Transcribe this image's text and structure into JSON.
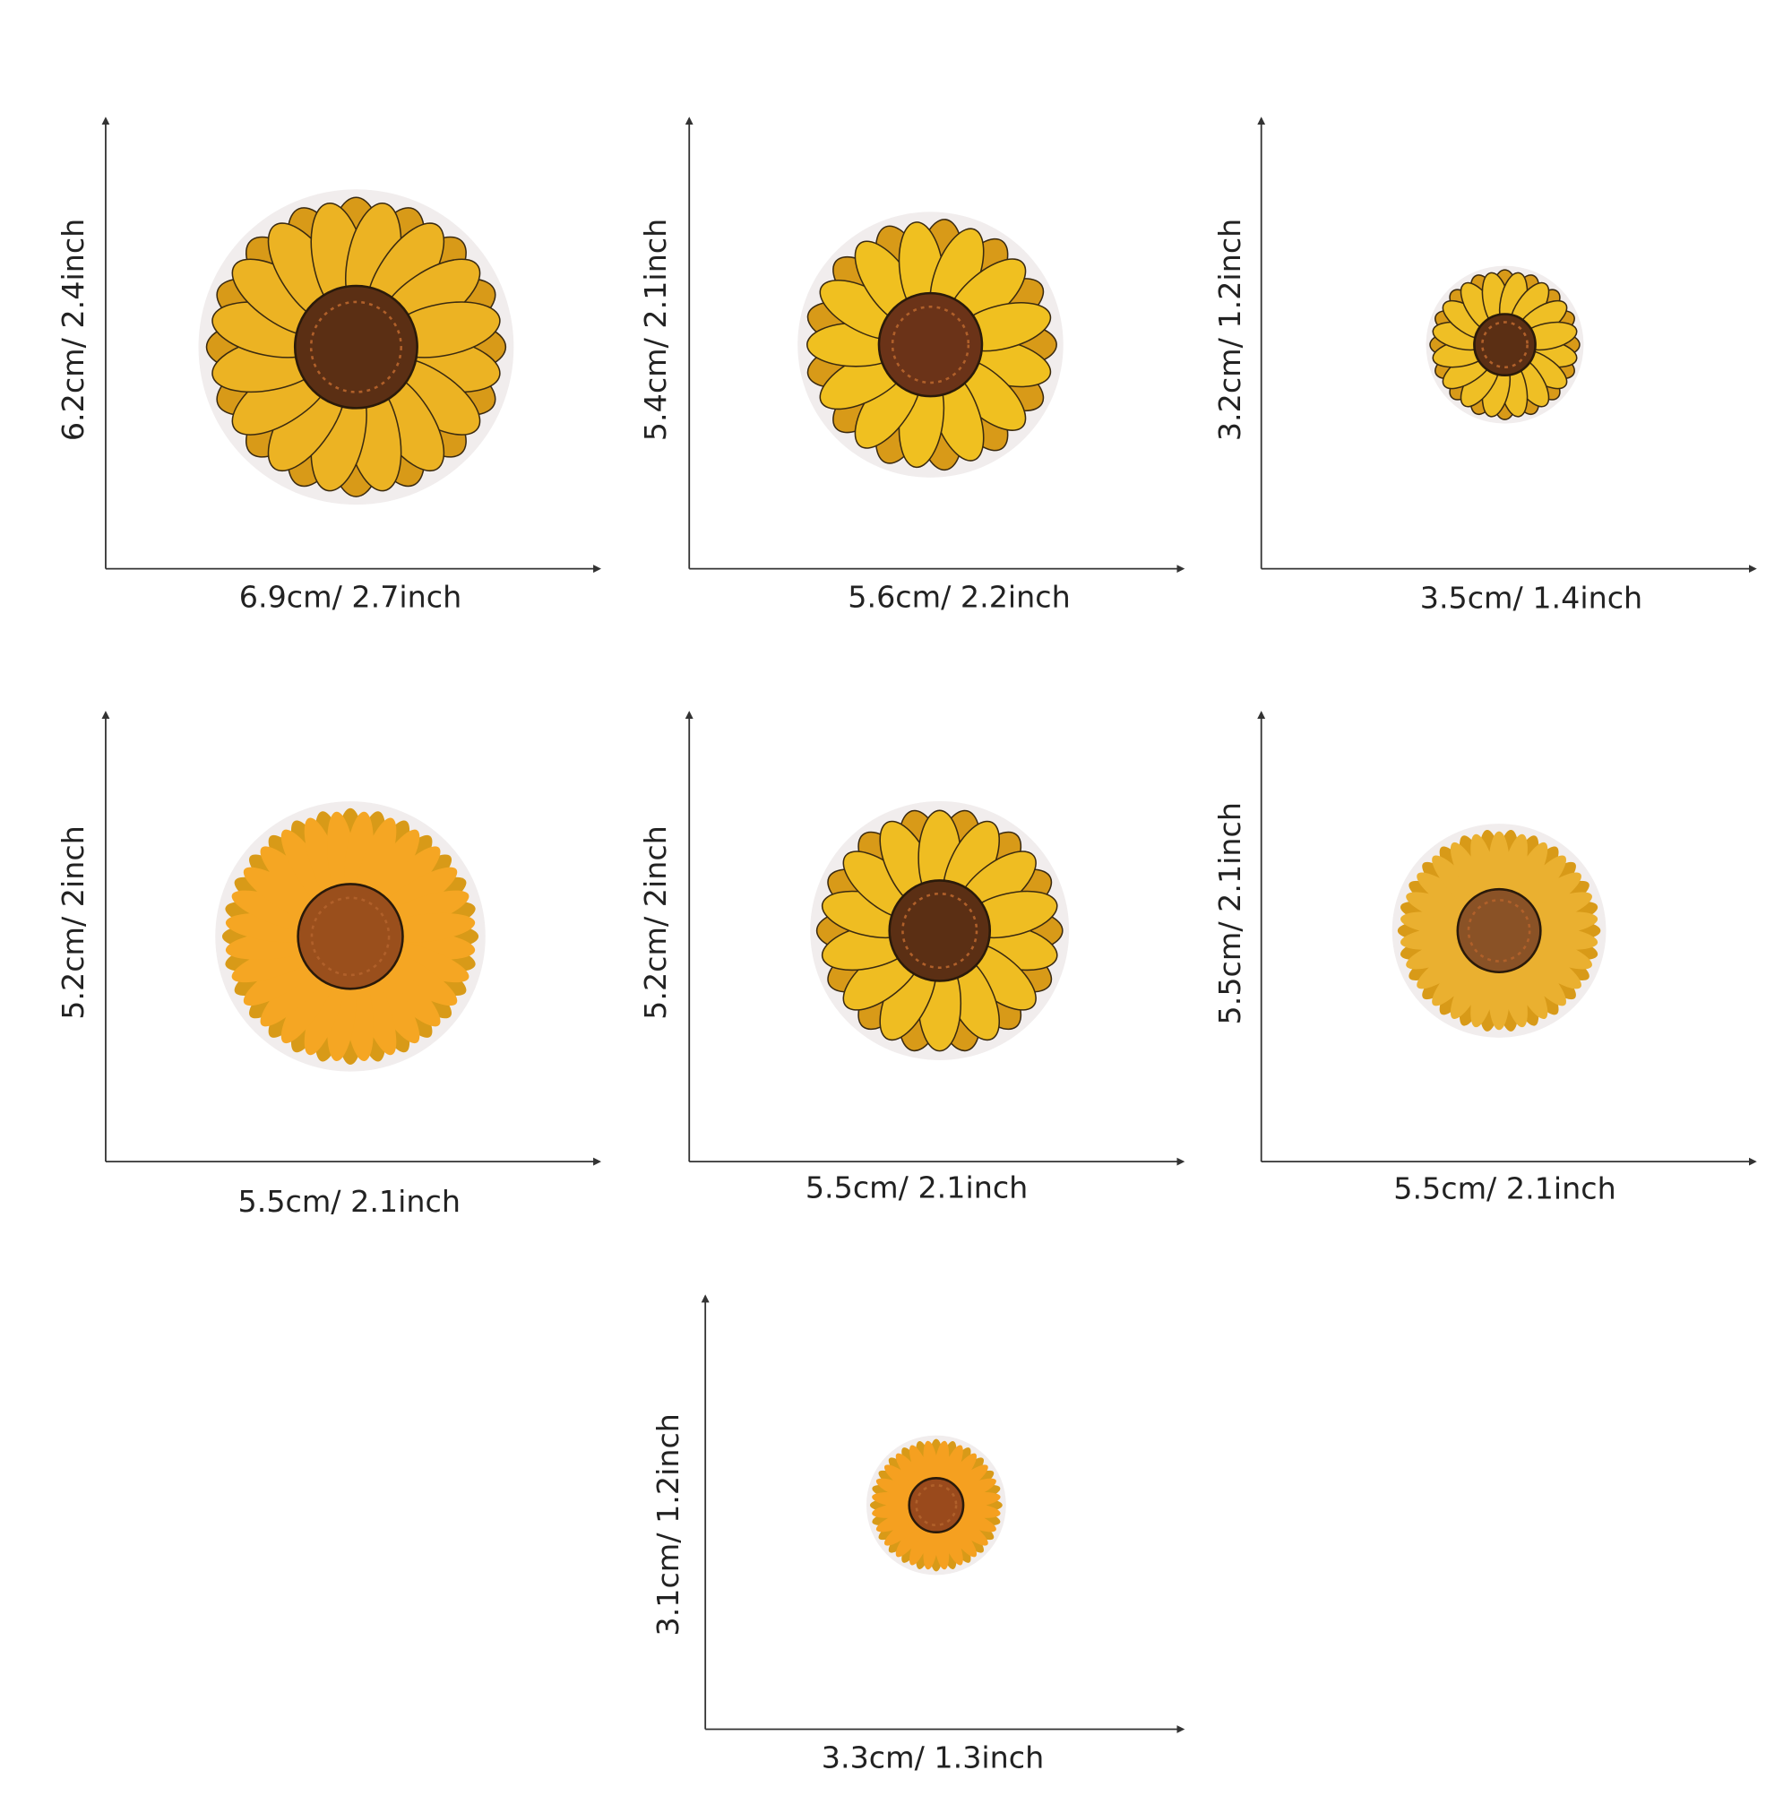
{
  "patches": [
    {
      "width_label": "6.9cm/ 2.7inch",
      "height_label": "6.2cm/ 2.4inch"
    },
    {
      "width_label": "5.6cm/ 2.2inch",
      "height_label": "5.4cm/ 2.1inch"
    },
    {
      "width_label": "3.5cm/ 1.4inch",
      "height_label": "3.2cm/ 1.2inch"
    },
    {
      "width_label": "5.5cm/ 2.1inch",
      "height_label": "5.2cm/ 2inch"
    },
    {
      "width_label": "5.5cm/ 2.1inch",
      "height_label": "5.2cm/ 2inch"
    },
    {
      "width_label": "5.5cm/ 2.1inch",
      "height_label": "5.5cm/ 2.1inch"
    },
    {
      "width_label": "3.3cm/ 1.3inch",
      "height_label": "3.1cm/ 1.2inch"
    }
  ]
}
